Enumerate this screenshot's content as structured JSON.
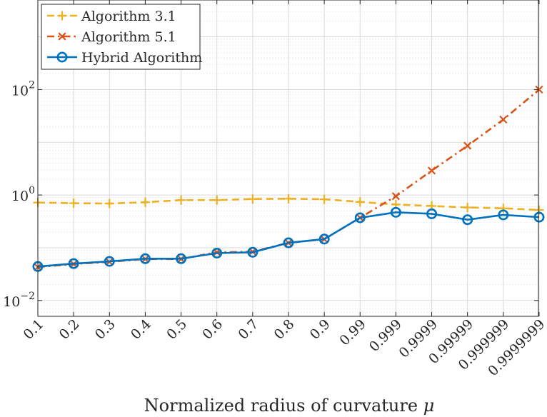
{
  "chart_data": {
    "type": "line",
    "y_scale": "log",
    "xlabel": "Normalized radius of curvature",
    "xlabel_symbol": "μ",
    "ylabel": "",
    "ylim": [
      0.005,
      5000
    ],
    "categories": [
      "0.1",
      "0.2",
      "0.3",
      "0.4",
      "0.5",
      "0.6",
      "0.7",
      "0.8",
      "0.9",
      "0.99",
      "0.999",
      "0.9999",
      "0.99999",
      "0.999999",
      "0.9999999"
    ],
    "y_ticks": [
      {
        "value": 0.01,
        "base": "10",
        "exp": "−2"
      },
      {
        "value": 1,
        "base": "10",
        "exp": "0"
      },
      {
        "value": 100,
        "base": "10",
        "exp": "2"
      }
    ],
    "grid": true,
    "legend_position": "top-left",
    "series": [
      {
        "name": "Algorithm 3.1",
        "color": "#EDB120",
        "dash": "dashed",
        "marker": "plus",
        "values": [
          0.72,
          0.7,
          0.69,
          0.73,
          0.8,
          0.8,
          0.84,
          0.85,
          0.83,
          0.74,
          0.66,
          0.62,
          0.58,
          0.56,
          0.52
        ]
      },
      {
        "name": "Algorithm 5.1",
        "color": "#D95319",
        "dash": "dashdot",
        "marker": "x",
        "values": [
          0.043,
          0.049,
          0.054,
          0.061,
          0.061,
          0.082,
          0.084,
          0.124,
          0.145,
          0.37,
          0.95,
          2.9,
          8.6,
          27,
          100
        ]
      },
      {
        "name": "Hybrid Algorithm",
        "color": "#0072BD",
        "dash": "solid",
        "marker": "circle",
        "values": [
          0.044,
          0.05,
          0.055,
          0.062,
          0.062,
          0.079,
          0.082,
          0.124,
          0.146,
          0.37,
          0.47,
          0.44,
          0.34,
          0.42,
          0.38
        ]
      }
    ]
  }
}
